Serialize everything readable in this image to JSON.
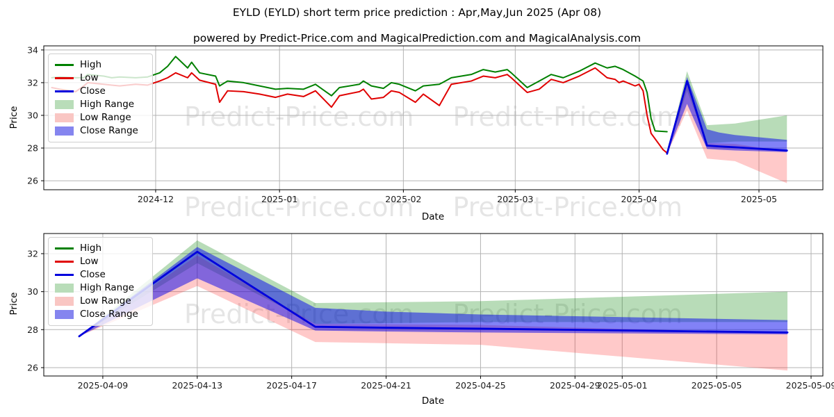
{
  "title": "EYLD (EYLD) short term price prediction : Apr,May,Jun 2025 (Apr 08)",
  "subtitle": "powered by Predict-Price.com and MagicalPrediction.com and MagicalAnalysis.com",
  "watermark": {
    "text": "Predict-Price.com"
  },
  "colors": {
    "high_line": "#008000",
    "low_line": "#e00000",
    "close_line": "#0000dd",
    "high_band": "rgba(0,128,0,0.28)",
    "low_band": "rgba(255,40,40,0.25)",
    "close_band": "rgba(0,0,238,0.49)",
    "grid": "#b3b3b3",
    "spine": "#000000",
    "tick_text": "#1a1a1a"
  },
  "legend": {
    "items": [
      {
        "label": "High",
        "swatch": "line",
        "color": "#008000"
      },
      {
        "label": "Low",
        "swatch": "line",
        "color": "#e00000"
      },
      {
        "label": "Close",
        "swatch": "line",
        "color": "#0000dd"
      },
      {
        "label": "High Range",
        "swatch": "patch",
        "color": "#b9ddb9"
      },
      {
        "label": "Low Range",
        "swatch": "patch",
        "color": "#f9c6c3"
      },
      {
        "label": "Close Range",
        "swatch": "patch",
        "color": "#8585ef"
      }
    ]
  },
  "chart_data": [
    {
      "id": "main",
      "type": "line",
      "title": "EYLD (EYLD) short term price prediction : Apr,May,Jun 2025 (Apr 08)",
      "xlabel": "Date",
      "ylabel": "Price",
      "grid": true,
      "legend_position": "upper left",
      "box": {
        "l": 63,
        "r": 1184,
        "t": 66,
        "b": 273
      },
      "xlim": [
        "2024-11-03",
        "2025-05-17"
      ],
      "ylim": [
        25.45,
        34.25
      ],
      "yticks": [
        26,
        28,
        30,
        32,
        34
      ],
      "xticks": [
        {
          "date": "2024-12-01",
          "label": "2024-12"
        },
        {
          "date": "2025-01-01",
          "label": "2025-01"
        },
        {
          "date": "2025-02-01",
          "label": "2025-02"
        },
        {
          "date": "2025-03-01",
          "label": "2025-03"
        },
        {
          "date": "2025-04-01",
          "label": "2025-04"
        },
        {
          "date": "2025-05-01",
          "label": "2025-05"
        }
      ],
      "bands": [
        {
          "name": "High Range",
          "color": "rgba(0,128,0,0.28)",
          "points": [
            [
              "2025-04-08",
              27.65,
              27.65
            ],
            [
              "2025-04-13",
              31.5,
              32.7
            ],
            [
              "2025-04-18",
              28.3,
              29.4
            ],
            [
              "2025-04-25",
              28.4,
              29.5
            ],
            [
              "2025-05-08",
              28.4,
              30.0
            ]
          ]
        },
        {
          "name": "Low Range",
          "color": "rgba(255,40,40,0.25)",
          "points": [
            [
              "2025-04-08",
              27.65,
              27.65
            ],
            [
              "2025-04-13",
              30.3,
              31.9
            ],
            [
              "2025-04-18",
              27.35,
              28.3
            ],
            [
              "2025-04-25",
              27.2,
              28.25
            ],
            [
              "2025-05-08",
              25.85,
              27.8
            ]
          ]
        },
        {
          "name": "Close Range",
          "color": "rgba(0,0,238,0.49)",
          "points": [
            [
              "2025-04-08",
              27.65,
              27.65
            ],
            [
              "2025-04-13",
              30.7,
              32.35
            ],
            [
              "2025-04-18",
              27.95,
              29.15
            ],
            [
              "2025-04-21",
              27.9,
              28.95
            ],
            [
              "2025-04-25",
              27.85,
              28.8
            ],
            [
              "2025-05-08",
              27.75,
              28.5
            ]
          ]
        }
      ],
      "series": [
        {
          "name": "High",
          "color": "#008000",
          "width": 2,
          "points": [
            [
              "2024-11-05",
              32.3
            ],
            [
              "2024-11-07",
              32.35
            ],
            [
              "2024-11-11",
              32.3
            ],
            [
              "2024-11-13",
              32.3
            ],
            [
              "2024-11-14",
              32.5
            ],
            [
              "2024-11-18",
              32.4
            ],
            [
              "2024-11-20",
              32.3
            ],
            [
              "2024-11-22",
              32.35
            ],
            [
              "2024-11-26",
              32.3
            ],
            [
              "2024-11-29",
              32.35
            ],
            [
              "2024-12-02",
              32.6
            ],
            [
              "2024-12-04",
              33.0
            ],
            [
              "2024-12-06",
              33.6
            ],
            [
              "2024-12-09",
              32.9
            ],
            [
              "2024-12-10",
              33.25
            ],
            [
              "2024-12-12",
              32.6
            ],
            [
              "2024-12-16",
              32.4
            ],
            [
              "2024-12-17",
              31.8
            ],
            [
              "2024-12-19",
              32.1
            ],
            [
              "2024-12-23",
              32.0
            ],
            [
              "2024-12-27",
              31.8
            ],
            [
              "2024-12-31",
              31.6
            ],
            [
              "2025-01-03",
              31.65
            ],
            [
              "2025-01-07",
              31.6
            ],
            [
              "2025-01-10",
              31.9
            ],
            [
              "2025-01-14",
              31.2
            ],
            [
              "2025-01-16",
              31.7
            ],
            [
              "2025-01-21",
              31.9
            ],
            [
              "2025-01-22",
              32.1
            ],
            [
              "2025-01-24",
              31.8
            ],
            [
              "2025-01-27",
              31.65
            ],
            [
              "2025-01-29",
              32.0
            ],
            [
              "2025-01-31",
              31.9
            ],
            [
              "2025-02-04",
              31.5
            ],
            [
              "2025-02-06",
              31.8
            ],
            [
              "2025-02-10",
              31.9
            ],
            [
              "2025-02-13",
              32.3
            ],
            [
              "2025-02-18",
              32.5
            ],
            [
              "2025-02-21",
              32.8
            ],
            [
              "2025-02-24",
              32.65
            ],
            [
              "2025-02-27",
              32.8
            ],
            [
              "2025-02-28",
              32.6
            ],
            [
              "2025-03-04",
              31.7
            ],
            [
              "2025-03-07",
              32.1
            ],
            [
              "2025-03-10",
              32.5
            ],
            [
              "2025-03-13",
              32.3
            ],
            [
              "2025-03-17",
              32.7
            ],
            [
              "2025-03-21",
              33.2
            ],
            [
              "2025-03-24",
              32.9
            ],
            [
              "2025-03-26",
              33.0
            ],
            [
              "2025-03-28",
              32.8
            ],
            [
              "2025-03-31",
              32.4
            ],
            [
              "2025-04-02",
              32.1
            ],
            [
              "2025-04-03",
              31.4
            ],
            [
              "2025-04-04",
              29.8
            ],
            [
              "2025-04-05",
              29.05
            ],
            [
              "2025-04-08",
              29.0
            ]
          ]
        },
        {
          "name": "Low",
          "color": "#e00000",
          "width": 2,
          "points": [
            [
              "2024-11-05",
              31.7
            ],
            [
              "2024-11-07",
              31.6
            ],
            [
              "2024-11-11",
              31.45
            ],
            [
              "2024-11-13",
              31.8
            ],
            [
              "2024-11-14",
              32.0
            ],
            [
              "2024-11-18",
              31.9
            ],
            [
              "2024-11-20",
              31.85
            ],
            [
              "2024-11-22",
              31.8
            ],
            [
              "2024-11-26",
              31.9
            ],
            [
              "2024-11-29",
              31.85
            ],
            [
              "2024-12-02",
              32.1
            ],
            [
              "2024-12-04",
              32.3
            ],
            [
              "2024-12-06",
              32.6
            ],
            [
              "2024-12-09",
              32.3
            ],
            [
              "2024-12-10",
              32.6
            ],
            [
              "2024-12-12",
              32.15
            ],
            [
              "2024-12-16",
              31.9
            ],
            [
              "2024-12-17",
              30.8
            ],
            [
              "2024-12-19",
              31.5
            ],
            [
              "2024-12-23",
              31.45
            ],
            [
              "2024-12-27",
              31.3
            ],
            [
              "2024-12-31",
              31.1
            ],
            [
              "2025-01-03",
              31.3
            ],
            [
              "2025-01-07",
              31.15
            ],
            [
              "2025-01-10",
              31.5
            ],
            [
              "2025-01-14",
              30.5
            ],
            [
              "2025-01-16",
              31.2
            ],
            [
              "2025-01-21",
              31.45
            ],
            [
              "2025-01-22",
              31.6
            ],
            [
              "2025-01-24",
              31.0
            ],
            [
              "2025-01-27",
              31.1
            ],
            [
              "2025-01-29",
              31.5
            ],
            [
              "2025-01-31",
              31.4
            ],
            [
              "2025-02-04",
              30.8
            ],
            [
              "2025-02-06",
              31.3
            ],
            [
              "2025-02-10",
              30.6
            ],
            [
              "2025-02-13",
              31.9
            ],
            [
              "2025-02-18",
              32.1
            ],
            [
              "2025-02-21",
              32.4
            ],
            [
              "2025-02-24",
              32.3
            ],
            [
              "2025-02-27",
              32.5
            ],
            [
              "2025-02-28",
              32.3
            ],
            [
              "2025-03-04",
              31.4
            ],
            [
              "2025-03-07",
              31.6
            ],
            [
              "2025-03-10",
              32.2
            ],
            [
              "2025-03-13",
              32.0
            ],
            [
              "2025-03-17",
              32.4
            ],
            [
              "2025-03-21",
              32.9
            ],
            [
              "2025-03-24",
              32.3
            ],
            [
              "2025-03-26",
              32.2
            ],
            [
              "2025-03-27",
              32.0
            ],
            [
              "2025-03-28",
              32.1
            ],
            [
              "2025-03-31",
              31.8
            ],
            [
              "2025-04-01",
              31.9
            ],
            [
              "2025-04-02",
              31.5
            ],
            [
              "2025-04-03",
              30.0
            ],
            [
              "2025-04-04",
              28.9
            ],
            [
              "2025-04-07",
              27.9
            ],
            [
              "2025-04-08",
              27.7
            ]
          ]
        },
        {
          "name": "Close",
          "color": "#0000dd",
          "width": 2.8,
          "points": [
            [
              "2025-04-08",
              27.65
            ],
            [
              "2025-04-13",
              32.1
            ],
            [
              "2025-04-18",
              28.15
            ],
            [
              "2025-04-21",
              28.1
            ],
            [
              "2025-04-25",
              28.05
            ],
            [
              "2025-05-08",
              27.85
            ]
          ]
        }
      ]
    },
    {
      "id": "forecast",
      "type": "line",
      "xlabel": "Date",
      "ylabel": "Price",
      "grid": true,
      "legend_position": "upper left",
      "box": {
        "l": 63,
        "r": 1184,
        "t": 336,
        "b": 541
      },
      "xlim": [
        "2025-04-06T12:00Z",
        "2025-05-09T12:00Z"
      ],
      "ylim": [
        25.56,
        33.06
      ],
      "yticks": [
        26,
        28,
        30,
        32
      ],
      "xticks": [
        {
          "date": "2025-04-09",
          "label": "2025-04-09"
        },
        {
          "date": "2025-04-13",
          "label": "2025-04-13"
        },
        {
          "date": "2025-04-17",
          "label": "2025-04-17"
        },
        {
          "date": "2025-04-21",
          "label": "2025-04-21"
        },
        {
          "date": "2025-04-25",
          "label": "2025-04-25"
        },
        {
          "date": "2025-04-29",
          "label": "2025-04-29"
        },
        {
          "date": "2025-05-01",
          "label": "2025-05-01"
        },
        {
          "date": "2025-05-05",
          "label": "2025-05-05"
        },
        {
          "date": "2025-05-09",
          "label": "2025-05-09"
        }
      ],
      "bands": [
        {
          "name": "High Range",
          "color": "rgba(0,128,0,0.28)",
          "points": [
            [
              "2025-04-08",
              27.65,
              27.65
            ],
            [
              "2025-04-13",
              31.5,
              32.7
            ],
            [
              "2025-04-18",
              28.3,
              29.4
            ],
            [
              "2025-04-25",
              28.4,
              29.5
            ],
            [
              "2025-05-08",
              28.4,
              30.0
            ]
          ]
        },
        {
          "name": "Low Range",
          "color": "rgba(255,40,40,0.25)",
          "points": [
            [
              "2025-04-08",
              27.65,
              27.65
            ],
            [
              "2025-04-13",
              30.3,
              31.9
            ],
            [
              "2025-04-18",
              27.35,
              28.3
            ],
            [
              "2025-04-25",
              27.2,
              28.25
            ],
            [
              "2025-05-08",
              25.85,
              27.8
            ]
          ]
        },
        {
          "name": "Close Range",
          "color": "rgba(0,0,238,0.49)",
          "points": [
            [
              "2025-04-08",
              27.65,
              27.65
            ],
            [
              "2025-04-13",
              30.7,
              32.35
            ],
            [
              "2025-04-18",
              27.95,
              29.15
            ],
            [
              "2025-04-21",
              27.9,
              28.95
            ],
            [
              "2025-04-25",
              27.85,
              28.8
            ],
            [
              "2025-05-08",
              27.75,
              28.5
            ]
          ]
        }
      ],
      "series": [
        {
          "name": "High",
          "color": "#008000",
          "width": 2,
          "points": []
        },
        {
          "name": "Low",
          "color": "#e00000",
          "width": 2,
          "points": []
        },
        {
          "name": "Close",
          "color": "#0000dd",
          "width": 2.8,
          "points": [
            [
              "2025-04-08",
              27.65
            ],
            [
              "2025-04-13",
              32.1
            ],
            [
              "2025-04-18",
              28.15
            ],
            [
              "2025-04-21",
              28.1
            ],
            [
              "2025-04-25",
              28.05
            ],
            [
              "2025-05-08",
              27.85
            ]
          ]
        }
      ]
    }
  ]
}
